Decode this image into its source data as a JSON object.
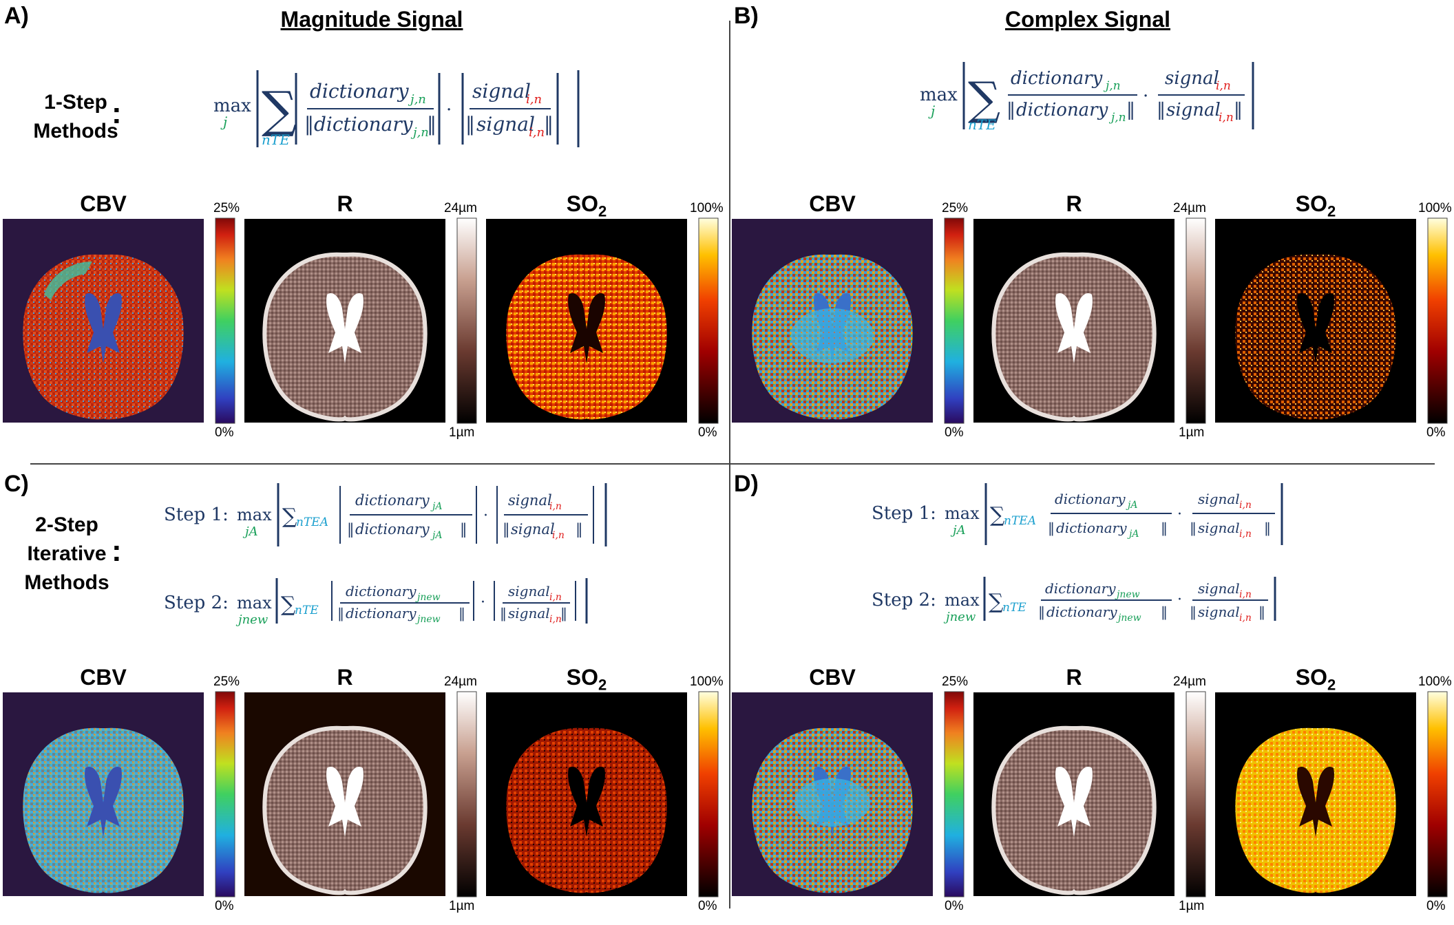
{
  "panels": {
    "a": {
      "letter": "A)",
      "title": "Magnitude Signal"
    },
    "b": {
      "letter": "B)",
      "title": "Complex Signal"
    },
    "c": {
      "letter": "C)"
    },
    "d": {
      "letter": "D)"
    }
  },
  "methods": {
    "one_step": [
      "1-Step",
      "Methods"
    ],
    "two_step": [
      "2-Step",
      "Iterative",
      "Methods"
    ],
    "colon": ":"
  },
  "formula": {
    "max": "max",
    "j": "j",
    "sum": "∑",
    "nTE": "nTE",
    "dictionary": "dictionary",
    "signal": "signal",
    "jn": "j,n",
    "in": "i,n",
    "dot": "·",
    "step1": "Step 1:",
    "step2": "Step 2:",
    "jA": "jA",
    "jnew": "jnew",
    "nTEA": "nTEA"
  },
  "maps": {
    "cbv": {
      "label": "CBV",
      "max": "25%",
      "min": "0%"
    },
    "r": {
      "label": "R",
      "max": "24µm",
      "min": "1µm"
    },
    "so2": {
      "label": "SO",
      "sub": "2",
      "max": "100%",
      "min": "0%"
    }
  },
  "colors": {
    "cyan": "#1a9fce",
    "green": "#1aa05a",
    "red": "#e0201e",
    "navy": "#1f3864",
    "cbv_bg": "#2a1740"
  }
}
